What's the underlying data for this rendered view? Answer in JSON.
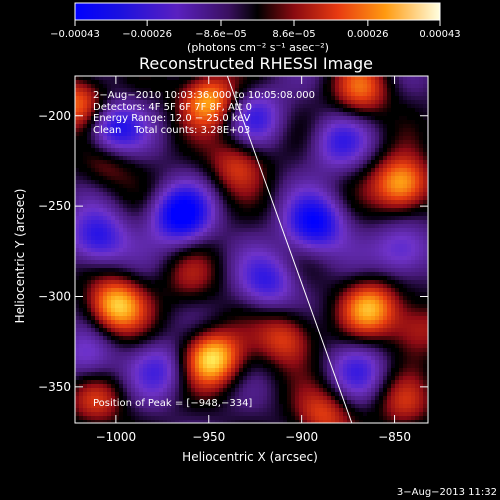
{
  "chart_data": {
    "type": "heatmap",
    "title": "Reconstructed RHESSI Image",
    "xlabel": "Heliocentric X (arcsec)",
    "ylabel": "Heliocentric Y (arcsec)",
    "xlim": [
      -1022,
      -832
    ],
    "ylim": [
      -370,
      -178
    ],
    "x_ticks": [
      {
        "value": -1000,
        "label": "−1000"
      },
      {
        "value": -950,
        "label": "−950"
      },
      {
        "value": -900,
        "label": "−900"
      },
      {
        "value": -850,
        "label": "−850"
      }
    ],
    "y_ticks": [
      {
        "value": -200,
        "label": "−200"
      },
      {
        "value": -250,
        "label": "−250"
      },
      {
        "value": -300,
        "label": "−300"
      },
      {
        "value": -350,
        "label": "−350"
      }
    ],
    "colorbar": {
      "unit_label": "(photons cm⁻² s⁻¹ asec⁻²)",
      "range": [
        -0.00043,
        0.00043
      ],
      "ticks": [
        {
          "value": -0.00043,
          "label": "−0.00043"
        },
        {
          "value": -0.00026,
          "label": "−0.00026"
        },
        {
          "value": -8.6e-05,
          "label": "−8.6e−05"
        },
        {
          "value": 8.6e-05,
          "label": "8.6e−05"
        },
        {
          "value": 0.00026,
          "label": "0.00026"
        },
        {
          "value": 0.00043,
          "label": "0.00043"
        }
      ]
    },
    "annotations": {
      "time_range": "2−Aug−2010 10:03:36.000 to 10:05:08.000",
      "detectors": "Detectors: 4F 5F 6F 7F 8F, Att 0",
      "energy_range": "Energy Range: 12.0 − 25.0 keV",
      "method_counts": "Clean    Total counts: 3.28E+03",
      "peak": "Position of Peak = [−948,−334]"
    },
    "peak_position": [
      -948,
      -334
    ],
    "limb_line": [
      [
        -940,
        -178
      ],
      [
        -873,
        -370
      ]
    ],
    "hot_spots": [
      {
        "x": -948,
        "y": -334,
        "intensity": 1.0
      },
      {
        "x": -950,
        "y": -191,
        "intensity": 0.85
      },
      {
        "x": -846,
        "y": -238,
        "intensity": 0.95
      },
      {
        "x": -1000,
        "y": -305,
        "intensity": 0.95
      },
      {
        "x": -863,
        "y": -306,
        "intensity": 0.8
      },
      {
        "x": -908,
        "y": -323,
        "intensity": 0.6
      },
      {
        "x": -1020,
        "y": -193,
        "intensity": 0.7
      },
      {
        "x": -868,
        "y": -186,
        "intensity": 0.6
      },
      {
        "x": -935,
        "y": -227,
        "intensity": 0.5
      },
      {
        "x": -1005,
        "y": -226,
        "intensity": 0.4
      },
      {
        "x": -888,
        "y": -366,
        "intensity": 0.55
      },
      {
        "x": -845,
        "y": -360,
        "intensity": 0.4
      },
      {
        "x": -1010,
        "y": -358,
        "intensity": 0.45
      },
      {
        "x": -960,
        "y": -290,
        "intensity": 0.3
      },
      {
        "x": -838,
        "y": -318,
        "intensity": 0.5
      }
    ],
    "cold_spots": [
      {
        "x": -965,
        "y": -255,
        "intensity": -0.95
      },
      {
        "x": -1002,
        "y": -208,
        "intensity": -0.8
      },
      {
        "x": -893,
        "y": -260,
        "intensity": -0.85
      },
      {
        "x": -1010,
        "y": -268,
        "intensity": -0.7
      },
      {
        "x": -918,
        "y": -292,
        "intensity": -0.55
      },
      {
        "x": -976,
        "y": -340,
        "intensity": -0.45
      },
      {
        "x": -845,
        "y": -275,
        "intensity": -0.55
      },
      {
        "x": -925,
        "y": -200,
        "intensity": -0.5
      },
      {
        "x": -880,
        "y": -215,
        "intensity": -0.5
      },
      {
        "x": -1015,
        "y": -335,
        "intensity": -0.4
      },
      {
        "x": -870,
        "y": -340,
        "intensity": -0.45
      }
    ]
  },
  "footer": {
    "timestamp": "3−Aug−2013 11:32"
  }
}
